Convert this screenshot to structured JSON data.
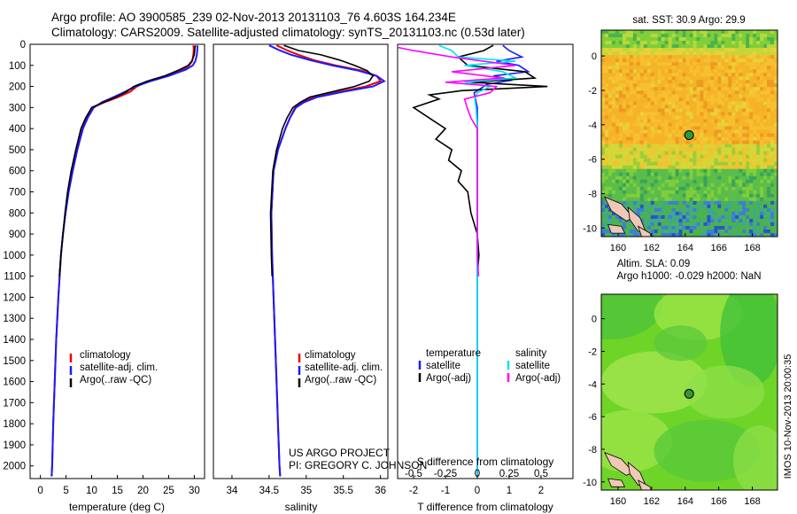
{
  "header": {
    "line1": "Argo profile: AO 3900585_239 02-Nov-2013 20131103_76 4.603S 164.234E",
    "line2": "Climatology: CARS2009. Satellite-adjusted climatology: synTS_20131103.nc (0.53d later)"
  },
  "colors": {
    "clim": "#e8000b",
    "sat": "#1a1aff",
    "argo": "#000000",
    "cyan": "#00e5ee",
    "magenta": "#ff00ff",
    "float": "#339933"
  },
  "credits": {
    "line1": "US ARGO PROJECT",
    "line2": "PI: GREGORY C. JOHNSON"
  },
  "stamp": "IMOS 10-Nov-2013 20:00:35",
  "chart_data": [
    {
      "type": "line",
      "panel": "temperature",
      "xlabel": "temperature (deg C)",
      "ylabel": "",
      "xlim": [
        -2,
        32
      ],
      "ylim": [
        0,
        2060
      ],
      "yticks": [
        0,
        100,
        200,
        300,
        400,
        500,
        600,
        700,
        800,
        900,
        1000,
        1100,
        1200,
        1300,
        1400,
        1500,
        1600,
        1700,
        1800,
        1900,
        2000
      ],
      "xticks": [
        0,
        5,
        10,
        15,
        20,
        25,
        30
      ],
      "legend": [
        "climatology",
        "satellite-adj. clim.",
        "Argo(..raw -QC)"
      ],
      "series": [
        {
          "name": "climatology",
          "depth": [
            5,
            20,
            50,
            80,
            100,
            120,
            150,
            175,
            200,
            225,
            250,
            275,
            300,
            350,
            400,
            500,
            600,
            700,
            800,
            900,
            1000,
            1200,
            1400,
            1600,
            1800,
            2000,
            2050
          ],
          "values": [
            29.8,
            29.9,
            29.8,
            29.6,
            29.0,
            27.8,
            24.5,
            21.0,
            18.8,
            17.5,
            15.2,
            12.5,
            10.2,
            9.1,
            8.2,
            7.2,
            6.3,
            5.5,
            4.9,
            4.4,
            4.0,
            3.5,
            3.1,
            2.8,
            2.5,
            2.3,
            2.2
          ]
        },
        {
          "name": "satellite-adj. clim.",
          "depth": [
            5,
            20,
            50,
            80,
            100,
            120,
            150,
            175,
            200,
            225,
            250,
            275,
            300,
            350,
            400,
            500,
            600,
            700,
            800,
            900,
            1000,
            1200,
            1400,
            1600,
            1800,
            2000,
            2050
          ],
          "values": [
            30.6,
            30.6,
            30.5,
            30.2,
            29.7,
            28.4,
            25.0,
            21.5,
            18.5,
            16.5,
            14.3,
            12.0,
            10.4,
            9.2,
            8.3,
            7.2,
            6.3,
            5.5,
            4.9,
            4.4,
            4.0,
            3.5,
            3.1,
            2.8,
            2.5,
            2.3,
            2.2
          ]
        },
        {
          "name": "Argo(..raw -QC)",
          "depth": [
            5,
            20,
            50,
            80,
            100,
            120,
            150,
            175,
            200,
            225,
            250,
            275,
            300,
            350,
            400,
            500,
            600,
            700,
            800,
            900,
            1000,
            1100
          ],
          "values": [
            30.2,
            30.1,
            30.0,
            29.5,
            28.8,
            27.2,
            24.2,
            20.8,
            18.2,
            16.8,
            14.8,
            12.3,
            10.0,
            8.8,
            7.9,
            6.9,
            6.0,
            5.3,
            4.8,
            4.4,
            4.0,
            3.7
          ]
        }
      ]
    },
    {
      "type": "line",
      "panel": "salinity",
      "xlabel": "salinity",
      "ylabel": "",
      "xlim": [
        33.75,
        36.1
      ],
      "ylim": [
        0,
        2060
      ],
      "xticks": [
        34,
        34.5,
        35,
        35.5,
        36
      ],
      "legend": [
        "climatology",
        "satellite-adj. clim.",
        "Argo(..raw -QC)"
      ],
      "series": [
        {
          "name": "climatology",
          "depth": [
            5,
            30,
            50,
            75,
            100,
            125,
            150,
            175,
            200,
            225,
            250,
            275,
            300,
            350,
            400,
            500,
            600,
            800,
            1000,
            1200,
            1400,
            1600,
            1800,
            2000,
            2050
          ],
          "values": [
            34.6,
            34.75,
            34.9,
            35.1,
            35.4,
            35.75,
            35.95,
            36.0,
            35.8,
            35.45,
            35.1,
            34.95,
            34.85,
            34.78,
            34.72,
            34.62,
            34.56,
            34.53,
            34.54,
            34.56,
            34.58,
            34.6,
            34.62,
            34.64,
            34.65
          ]
        },
        {
          "name": "satellite-adj. clim.",
          "depth": [
            5,
            30,
            50,
            75,
            100,
            125,
            150,
            175,
            200,
            225,
            250,
            275,
            300,
            350,
            400,
            500,
            600,
            800,
            1000,
            1200,
            1400,
            1600,
            1800,
            2000,
            2050
          ],
          "values": [
            34.5,
            34.65,
            34.8,
            35.05,
            35.35,
            35.7,
            35.95,
            36.05,
            35.9,
            35.5,
            35.15,
            34.97,
            34.86,
            34.78,
            34.72,
            34.62,
            34.56,
            34.53,
            34.54,
            34.56,
            34.58,
            34.6,
            34.62,
            34.64,
            34.65
          ]
        },
        {
          "name": "Argo(..raw -QC)",
          "depth": [
            5,
            30,
            50,
            75,
            100,
            125,
            150,
            175,
            200,
            225,
            250,
            275,
            300,
            350,
            400,
            500,
            600,
            800,
            1000,
            1100
          ],
          "values": [
            34.7,
            34.9,
            35.2,
            35.45,
            35.65,
            35.82,
            35.9,
            35.85,
            35.65,
            35.35,
            35.05,
            34.92,
            34.82,
            34.74,
            34.68,
            34.6,
            34.55,
            34.52,
            34.53,
            34.54
          ]
        }
      ]
    },
    {
      "type": "line",
      "panel": "difference",
      "xlabel": "T difference from climatology",
      "xlabel2": "S difference from climatology",
      "xlim": [
        -2.5,
        3.0
      ],
      "ylim": [
        0,
        2060
      ],
      "xticks": [
        -2,
        -1,
        0,
        1,
        2
      ],
      "xticks2": [
        -0.5,
        -0.25,
        0,
        0.25,
        0.5
      ],
      "legend": [
        "temperature",
        "satellite",
        "Argo(-adj)",
        "salinity",
        "satellite",
        "Argo(-adj)"
      ],
      "series": [
        {
          "name": "satellite",
          "depth": [
            5,
            30,
            60,
            80,
            100,
            130,
            150,
            170,
            190,
            200,
            230,
            300,
            400,
            600,
            800,
            1000,
            1500,
            2000,
            2050
          ],
          "values": [
            0.8,
            1.0,
            1.4,
            0.6,
            1.3,
            1.6,
            0.5,
            1.1,
            0.3,
            0.2,
            -0.1,
            0.0,
            0.0,
            0.0,
            0.0,
            0.0,
            0.0,
            0.0,
            0.0
          ]
        },
        {
          "name": "Argo(-adj)",
          "depth": [
            5,
            30,
            60,
            100,
            130,
            160,
            180,
            200,
            220,
            240,
            260,
            300,
            350,
            400,
            450,
            500,
            550,
            600,
            650,
            700,
            800,
            900,
            1000,
            1100
          ],
          "values": [
            0.5,
            0.2,
            -0.6,
            -0.3,
            1.5,
            1.8,
            -0.2,
            2.2,
            -0.5,
            -1.5,
            -1.2,
            -2.0,
            -1.5,
            -1.0,
            -1.3,
            -0.8,
            -0.9,
            -0.5,
            -0.6,
            -0.3,
            -0.2,
            0.0,
            0.05,
            0.0
          ]
        },
        {
          "name": "satellite",
          "depth": [
            5,
            30,
            60,
            80,
            100,
            130,
            160,
            180,
            200,
            230,
            260,
            300,
            400,
            600,
            800,
            1000,
            1500,
            2000,
            2050
          ],
          "values": [
            -0.3,
            -0.2,
            -0.15,
            0.3,
            -0.1,
            0.2,
            0.3,
            -0.1,
            0.1,
            0.0,
            -0.02,
            -0.01,
            0.0,
            0.0,
            0.0,
            0.0,
            0.0,
            0.0,
            0.0
          ]
        },
        {
          "name": "Argo(-adj)",
          "depth": [
            5,
            30,
            60,
            100,
            130,
            160,
            180,
            200,
            230,
            260,
            300,
            350,
            400,
            600,
            800,
            1000,
            1100
          ],
          "values": [
            -0.7,
            -0.5,
            -0.2,
            0.3,
            -0.2,
            0.2,
            -0.25,
            0.15,
            0.1,
            -0.1,
            -0.08,
            -0.05,
            0.0,
            0.0,
            0.0,
            0.0,
            0.01
          ]
        }
      ]
    },
    {
      "type": "heatmap",
      "panel": "sst-map",
      "title": "sat. SST: 30.9 Argo: 29.9",
      "xlim": [
        159,
        169.5
      ],
      "ylim": [
        -10.5,
        1.5
      ],
      "xticks": [
        160,
        162,
        164,
        166,
        168
      ],
      "yticks": [
        0,
        -2,
        -4,
        -6,
        -8,
        -10
      ],
      "float": {
        "lon": 164.234,
        "lat": -4.603
      }
    },
    {
      "type": "heatmap",
      "panel": "sla-map",
      "title": "Altim. SLA: 0.09",
      "subtitle": "Argo h1000: -0.029 h2000: NaN",
      "xlim": [
        159,
        169.5
      ],
      "ylim": [
        -10.5,
        1.5
      ],
      "xticks": [
        160,
        162,
        164,
        166,
        168
      ],
      "yticks": [
        0,
        -2,
        -4,
        -6,
        -8,
        -10
      ],
      "float": {
        "lon": 164.234,
        "lat": -4.603
      }
    }
  ]
}
